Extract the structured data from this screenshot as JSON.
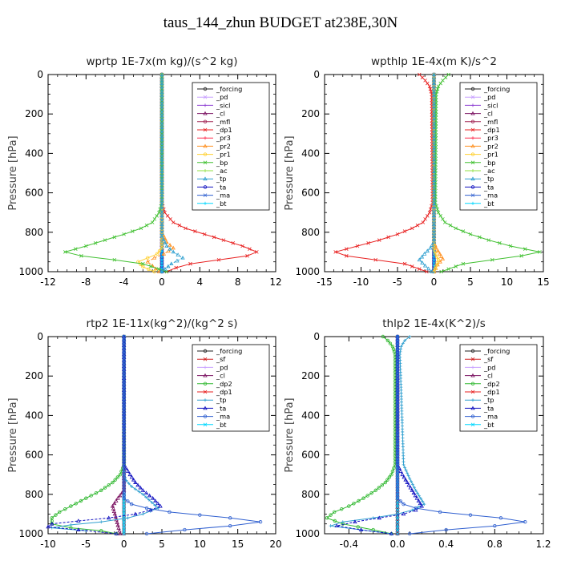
{
  "figure_title": "taus_144_zhun  BUDGET at238E,30N",
  "colors": {
    "forcing": "#222222",
    "pd": "#c8a0ff",
    "sicl": "#8c3cd2",
    "cl": "#7a1060",
    "mfl": "#a02050",
    "dp1": "#e82020",
    "pr3": "#ff3050",
    "pr2": "#ff9020",
    "pr1": "#ffd030",
    "bp": "#40c030",
    "ac": "#90e040",
    "tp": "#30a0d0",
    "ta": "#1010c0",
    "ma": "#3060d0",
    "bt": "#00d8ff",
    "sf": "#d02020",
    "dp2": "#30b830"
  },
  "chart_data": [
    {
      "type": "line",
      "title": "wprtp  1E-7x(m kg)/(s^2 kg)",
      "ylabel": "Pressure [hPa]",
      "xlim": [
        -12,
        12
      ],
      "ylim": [
        0,
        1000
      ],
      "y_inverted": true,
      "xticks": [
        "-12",
        "-8",
        "-4",
        "0",
        "4",
        "8",
        "12"
      ],
      "yticks": [
        "0",
        "200",
        "400",
        "600",
        "800",
        "1000"
      ],
      "legend_position": "top-right",
      "legend": [
        "_forcing",
        "_pd",
        "_sicl",
        "_cl",
        "_mfl",
        "_dp1",
        "_pr3",
        "_pr2",
        "_pr1",
        "_bp",
        "_ac",
        "_tp",
        "_ta",
        "_ma",
        "_bt"
      ],
      "series": [
        {
          "name": "_forcing",
          "x": [
            0,
            0
          ],
          "y": [
            0,
            1000
          ]
        },
        {
          "name": "_pd",
          "x": [
            0,
            0
          ],
          "y": [
            0,
            1000
          ]
        },
        {
          "name": "_sicl",
          "x": [
            0,
            0
          ],
          "y": [
            0,
            1000
          ]
        },
        {
          "name": "_cl",
          "x": [
            0,
            0
          ],
          "y": [
            0,
            1000
          ]
        },
        {
          "name": "_mfl",
          "x": [
            0,
            0
          ],
          "y": [
            0,
            1000
          ]
        },
        {
          "name": "_dp1",
          "x": [
            0,
            0,
            0.3,
            1.2,
            2.5,
            4.5,
            6.5,
            8.5,
            10,
            9,
            6,
            3,
            1.5,
            0.5
          ],
          "y": [
            0,
            650,
            700,
            750,
            780,
            810,
            840,
            870,
            900,
            920,
            940,
            960,
            980,
            1000
          ]
        },
        {
          "name": "_pr3",
          "x": [
            0,
            0
          ],
          "y": [
            0,
            1000
          ]
        },
        {
          "name": "_pr2",
          "x": [
            0,
            0,
            0.5,
            1.2,
            0.2,
            -0.8,
            -1.5,
            -1.0,
            -0.3
          ],
          "y": [
            0,
            800,
            850,
            880,
            910,
            930,
            950,
            970,
            1000
          ]
        },
        {
          "name": "_pr1",
          "x": [
            0,
            0,
            -0.5,
            -1.5,
            -2.5,
            -2.0,
            -0.8
          ],
          "y": [
            0,
            880,
            910,
            930,
            950,
            975,
            1000
          ]
        },
        {
          "name": "_bp",
          "x": [
            0,
            0,
            -0.3,
            -1.0,
            -2.2,
            -4.0,
            -6.0,
            -8.0,
            -10.2,
            -8.5,
            -5.0,
            -2.0,
            0.5
          ],
          "y": [
            0,
            650,
            700,
            750,
            780,
            810,
            840,
            870,
            900,
            920,
            940,
            960,
            1000
          ]
        },
        {
          "name": "_ac",
          "x": [
            0,
            0
          ],
          "y": [
            0,
            1000
          ]
        },
        {
          "name": "_tp",
          "x": [
            0,
            0,
            0.5,
            1.2,
            2.2,
            1.0,
            0.0
          ],
          "y": [
            0,
            820,
            870,
            900,
            930,
            960,
            1000
          ]
        },
        {
          "name": "_ta",
          "x": [
            0,
            0
          ],
          "y": [
            0,
            1000
          ]
        },
        {
          "name": "_ma",
          "x": [
            0,
            0
          ],
          "y": [
            0,
            1000
          ]
        },
        {
          "name": "_bt",
          "x": [
            0,
            0
          ],
          "y": [
            0,
            1000
          ]
        }
      ]
    },
    {
      "type": "line",
      "title": "wpthlp  1E-4x(m K)/s^2",
      "ylabel": "Pressure [hPa]",
      "xlim": [
        -15,
        15
      ],
      "ylim": [
        0,
        1000
      ],
      "y_inverted": true,
      "xticks": [
        "-15",
        "-10",
        "-5",
        "0",
        "5",
        "10",
        "15"
      ],
      "yticks": [
        "0",
        "200",
        "400",
        "600",
        "800",
        "1000"
      ],
      "legend_position": "top-right",
      "legend": [
        "_forcing",
        "_pd",
        "_sicl",
        "_cl",
        "_mfl",
        "_dp1",
        "_pr3",
        "_pr2",
        "_pr1",
        "_bp",
        "_ac",
        "_tp",
        "_ta",
        "_ma",
        "_bt"
      ],
      "series": [
        {
          "name": "_forcing",
          "x": [
            0,
            0
          ],
          "y": [
            0,
            1000
          ]
        },
        {
          "name": "_pd",
          "x": [
            0,
            0
          ],
          "y": [
            0,
            1000
          ]
        },
        {
          "name": "_sicl",
          "x": [
            0,
            0
          ],
          "y": [
            0,
            1000
          ]
        },
        {
          "name": "_cl",
          "x": [
            0,
            0
          ],
          "y": [
            0,
            1000
          ]
        },
        {
          "name": "_mfl",
          "x": [
            0,
            0
          ],
          "y": [
            0,
            1000
          ]
        },
        {
          "name": "_dp1",
          "x": [
            -2.0,
            -1.2,
            -0.6,
            -0.3,
            -0.2,
            -0.6,
            -1.5,
            -3.0,
            -5.0,
            -7.5,
            -10.5,
            -13.5,
            -12,
            -8,
            -4,
            -1
          ],
          "y": [
            0,
            30,
            60,
            100,
            650,
            700,
            750,
            780,
            810,
            840,
            870,
            900,
            920,
            940,
            960,
            1000
          ]
        },
        {
          "name": "_pr3",
          "x": [
            0,
            0
          ],
          "y": [
            0,
            1000
          ]
        },
        {
          "name": "_pr2",
          "x": [
            0,
            0,
            0.3,
            0.8,
            1.2,
            0.5,
            0.0
          ],
          "y": [
            0,
            850,
            880,
            910,
            935,
            965,
            1000
          ]
        },
        {
          "name": "_pr1",
          "x": [
            0,
            0,
            0.2,
            0.6,
            0.3,
            0.0
          ],
          "y": [
            0,
            880,
            910,
            940,
            970,
            1000
          ]
        },
        {
          "name": "_bp",
          "x": [
            2.0,
            1.2,
            0.6,
            0.3,
            0.2,
            0.6,
            1.5,
            3.0,
            5.0,
            7.5,
            10.5,
            14.5,
            12,
            8,
            4,
            1
          ],
          "y": [
            0,
            30,
            60,
            100,
            650,
            700,
            750,
            780,
            810,
            840,
            870,
            900,
            920,
            940,
            960,
            1000
          ]
        },
        {
          "name": "_ac",
          "x": [
            0,
            0
          ],
          "y": [
            0,
            1000
          ]
        },
        {
          "name": "_tp",
          "x": [
            0,
            0,
            -0.5,
            -1.3,
            -2.0,
            -1.2,
            -0.3
          ],
          "y": [
            0,
            850,
            880,
            910,
            940,
            970,
            1000
          ]
        },
        {
          "name": "_ta",
          "x": [
            0,
            0
          ],
          "y": [
            0,
            1000
          ]
        },
        {
          "name": "_ma",
          "x": [
            0,
            0
          ],
          "y": [
            0,
            1000
          ]
        },
        {
          "name": "_bt",
          "x": [
            0,
            0
          ],
          "y": [
            0,
            1000
          ]
        }
      ]
    },
    {
      "type": "line",
      "title": "rtp2  1E-11x(kg^2)/(kg^2 s)",
      "ylabel": "Pressure [hPa]",
      "xlim": [
        -10,
        20
      ],
      "ylim": [
        0,
        1000
      ],
      "y_inverted": true,
      "xticks": [
        "-10",
        "-5",
        "0",
        "5",
        "10",
        "15",
        "20"
      ],
      "yticks": [
        "0",
        "200",
        "400",
        "600",
        "800",
        "1000"
      ],
      "legend_position": "top-right",
      "legend": [
        "_forcing",
        "_sf",
        "_pd",
        "_cl",
        "_dp2",
        "_dp1",
        "_tp",
        "_ta",
        "_ma",
        "_bt"
      ],
      "series": [
        {
          "name": "_forcing",
          "x": [
            0,
            0
          ],
          "y": [
            0,
            1000
          ]
        },
        {
          "name": "_sf",
          "x": [
            0,
            0
          ],
          "y": [
            0,
            1000
          ]
        },
        {
          "name": "_pd",
          "x": [
            0,
            0
          ],
          "y": [
            0,
            1000
          ]
        },
        {
          "name": "_cl",
          "x": [
            0,
            0,
            -0.8,
            -1.5,
            -1.2,
            -0.5
          ],
          "y": [
            0,
            780,
            820,
            860,
            900,
            1000
          ]
        },
        {
          "name": "_dp2",
          "x": [
            0,
            0,
            -0.5,
            -1.5,
            -3.0,
            -5.0,
            -7.0,
            -8.5,
            -9.5,
            -9.5,
            -7.0,
            -3.0,
            -1.0
          ],
          "y": [
            0,
            650,
            700,
            740,
            780,
            820,
            860,
            890,
            920,
            950,
            970,
            985,
            1000
          ]
        },
        {
          "name": "_dp1",
          "x": [
            0,
            0
          ],
          "y": [
            0,
            1000
          ]
        },
        {
          "name": "_tp",
          "x": [
            0,
            0,
            0.3,
            1.0,
            2.5,
            4.5,
            2.5,
            0.5,
            -3.0,
            -7.0,
            -9.5,
            -5.0
          ],
          "y": [
            0,
            700,
            730,
            760,
            800,
            870,
            900,
            920,
            940,
            955,
            970,
            985
          ]
        },
        {
          "name": "_ta",
          "x": [
            0,
            0,
            0.8,
            1.5,
            2.5,
            3.8,
            4.8,
            3.5,
            1.5,
            -2.0,
            -6.0,
            -9.5,
            -10,
            -6.0,
            -1.0
          ],
          "y": [
            0,
            650,
            700,
            740,
            780,
            820,
            860,
            880,
            900,
            920,
            935,
            950,
            965,
            980,
            1000
          ]
        },
        {
          "name": "_ma",
          "x": [
            0,
            0,
            1.0,
            3.0,
            6.0,
            10.0,
            14.0,
            18.0,
            14.0,
            8.0,
            3.0
          ],
          "y": [
            0,
            820,
            850,
            870,
            890,
            905,
            920,
            940,
            960,
            980,
            1000
          ]
        },
        {
          "name": "_bt",
          "x": [
            0,
            0
          ],
          "y": [
            0,
            1000
          ]
        }
      ]
    },
    {
      "type": "line",
      "title": "thlp2  1E-4x(K^2)/s",
      "ylabel": "Pressure [hPa]",
      "xlim": [
        -0.6,
        1.2
      ],
      "ylim": [
        0,
        1000
      ],
      "y_inverted": true,
      "xticks": [
        "-0.4",
        "0.0",
        "0.4",
        "0.8",
        "1.2"
      ],
      "yticks": [
        "0",
        "200",
        "400",
        "600",
        "800",
        "1000"
      ],
      "legend_position": "top-right",
      "legend": [
        "_forcing",
        "_sf",
        "_pd",
        "_cl",
        "_dp2",
        "_dp1",
        "_tp",
        "_ta",
        "_ma",
        "_bt"
      ],
      "series": [
        {
          "name": "_forcing",
          "x": [
            0,
            0
          ],
          "y": [
            0,
            1000
          ]
        },
        {
          "name": "_sf",
          "x": [
            0,
            0
          ],
          "y": [
            0,
            1000
          ]
        },
        {
          "name": "_pd",
          "x": [
            0,
            0
          ],
          "y": [
            0,
            1000
          ]
        },
        {
          "name": "_cl",
          "x": [
            0,
            0
          ],
          "y": [
            0,
            1000
          ]
        },
        {
          "name": "_dp2",
          "x": [
            -0.12,
            -0.08,
            -0.04,
            -0.02,
            -0.02,
            -0.05,
            -0.1,
            -0.18,
            -0.28,
            -0.4,
            -0.52,
            -0.58,
            -0.45,
            -0.2,
            -0.05
          ],
          "y": [
            0,
            20,
            50,
            90,
            650,
            700,
            740,
            780,
            820,
            860,
            890,
            920,
            950,
            980,
            1000
          ]
        },
        {
          "name": "_dp1",
          "x": [
            0,
            0
          ],
          "y": [
            0,
            1000
          ]
        },
        {
          "name": "_tp",
          "x": [
            0.1,
            0.06,
            0.03,
            0.02,
            0.05,
            0.1,
            0.15,
            0.22,
            0.12,
            0.0,
            -0.2,
            -0.45,
            -0.55,
            -0.3,
            -0.05
          ],
          "y": [
            0,
            20,
            50,
            90,
            650,
            720,
            780,
            850,
            880,
            900,
            920,
            940,
            960,
            980,
            1000
          ]
        },
        {
          "name": "_ta",
          "x": [
            0,
            0,
            0.04,
            0.08,
            0.12,
            0.16,
            0.2,
            0.15,
            0.05,
            -0.15,
            -0.35,
            -0.5,
            -0.3,
            -0.05
          ],
          "y": [
            0,
            650,
            700,
            740,
            780,
            820,
            860,
            880,
            900,
            920,
            940,
            960,
            980,
            1000
          ]
        },
        {
          "name": "_ma",
          "x": [
            0,
            0,
            0.05,
            0.15,
            0.35,
            0.6,
            0.85,
            1.05,
            0.8,
            0.4,
            0.1
          ],
          "y": [
            0,
            820,
            850,
            870,
            890,
            905,
            920,
            940,
            960,
            980,
            1000
          ]
        },
        {
          "name": "_bt",
          "x": [
            0,
            0
          ],
          "y": [
            0,
            1000
          ]
        }
      ]
    }
  ]
}
